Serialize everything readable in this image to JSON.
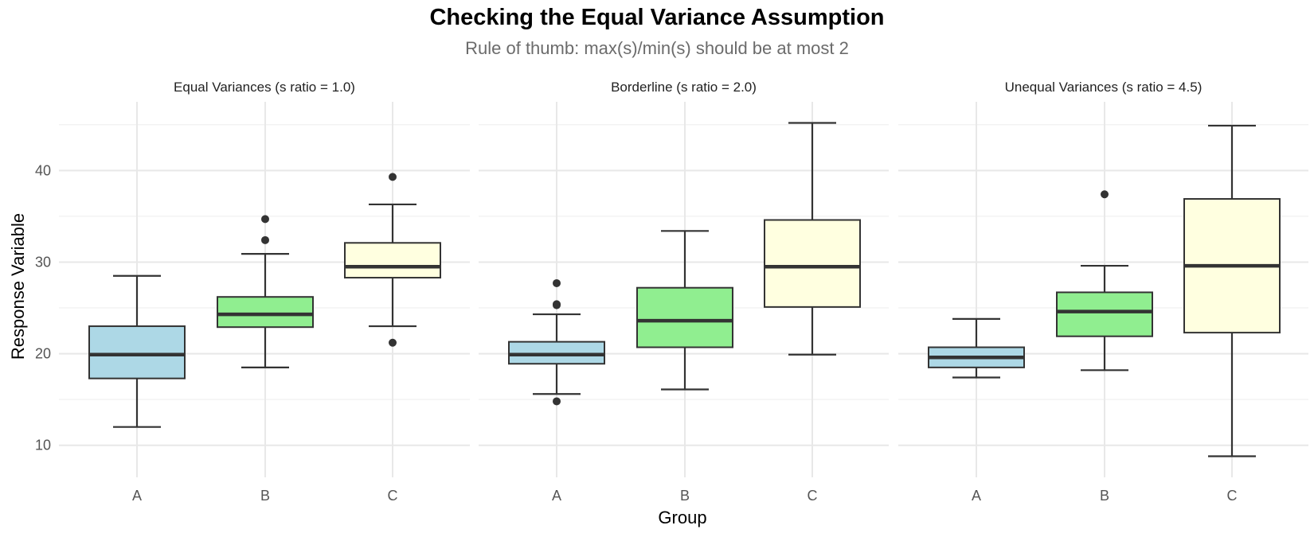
{
  "chart_data": {
    "type": "boxplot",
    "title": "Checking the Equal Variance Assumption",
    "subtitle": "Rule of thumb: max(s)/min(s) should be at most 2",
    "xlabel": "Group",
    "ylabel": "Response Variable",
    "ylim": [
      6.5,
      47.5
    ],
    "y_ticks": [
      10,
      20,
      30,
      40
    ],
    "grid": true,
    "categories": [
      "A",
      "B",
      "C"
    ],
    "colors": {
      "A": "#add8e6",
      "B": "#90ee90",
      "C": "#ffffe0"
    },
    "panels": [
      {
        "label": "Equal Variances (s ratio = 1.0)",
        "boxes": [
          {
            "group": "A",
            "whisker_low": 12.0,
            "q1": 17.3,
            "median": 19.9,
            "q3": 23.0,
            "whisker_high": 28.5,
            "outliers": []
          },
          {
            "group": "B",
            "whisker_low": 18.5,
            "q1": 22.9,
            "median": 24.3,
            "q3": 26.2,
            "whisker_high": 30.9,
            "outliers": [
              32.4,
              34.7
            ]
          },
          {
            "group": "C",
            "whisker_low": 23.0,
            "q1": 28.3,
            "median": 29.5,
            "q3": 32.1,
            "whisker_high": 36.3,
            "outliers": [
              21.2,
              39.3
            ]
          }
        ]
      },
      {
        "label": "Borderline (s ratio = 2.0)",
        "boxes": [
          {
            "group": "A",
            "whisker_low": 15.6,
            "q1": 18.9,
            "median": 19.9,
            "q3": 21.3,
            "whisker_high": 24.3,
            "outliers": [
              14.8,
              25.3,
              25.4,
              27.7
            ]
          },
          {
            "group": "B",
            "whisker_low": 16.1,
            "q1": 20.7,
            "median": 23.6,
            "q3": 27.2,
            "whisker_high": 33.4,
            "outliers": []
          },
          {
            "group": "C",
            "whisker_low": 19.9,
            "q1": 25.1,
            "median": 29.5,
            "q3": 34.6,
            "whisker_high": 45.2,
            "outliers": []
          }
        ]
      },
      {
        "label": "Unequal Variances (s ratio = 4.5)",
        "boxes": [
          {
            "group": "A",
            "whisker_low": 17.4,
            "q1": 18.5,
            "median": 19.6,
            "q3": 20.7,
            "whisker_high": 23.8,
            "outliers": []
          },
          {
            "group": "B",
            "whisker_low": 18.2,
            "q1": 21.9,
            "median": 24.6,
            "q3": 26.7,
            "whisker_high": 29.6,
            "outliers": [
              37.4
            ]
          },
          {
            "group": "C",
            "whisker_low": 8.8,
            "q1": 22.3,
            "median": 29.6,
            "q3": 36.9,
            "whisker_high": 44.9,
            "outliers": []
          }
        ]
      }
    ]
  }
}
